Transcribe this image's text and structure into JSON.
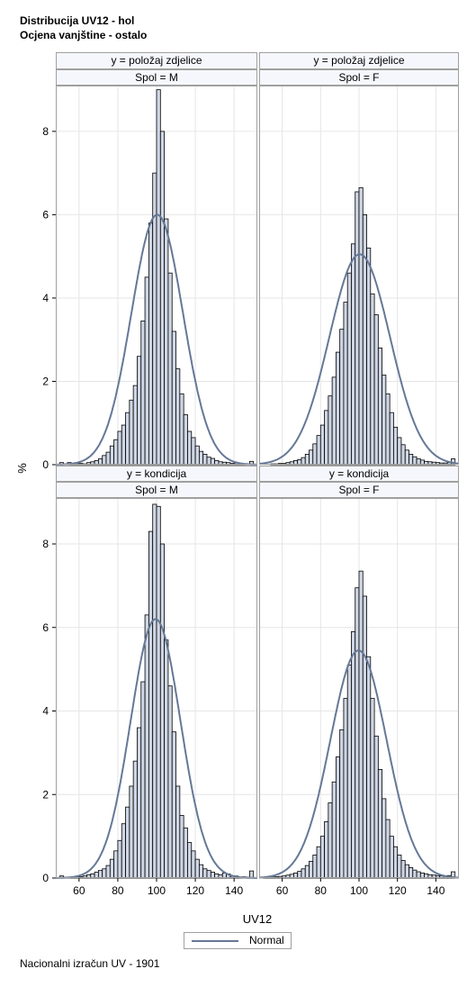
{
  "titles": {
    "line1": "Distribucija UV12 - hol",
    "line2": "Ocjena vanjštine - ostalo"
  },
  "footnote": "Nacionalni izračun UV - 1901",
  "legend": {
    "label": "Normal"
  },
  "colors": {
    "bar_fill": "#cfd6e4",
    "bar_edge": "#000000",
    "curve": "#657897",
    "header_bg": "#f6f7fc",
    "grid": "#e6e6e6",
    "frame": "#a0a0a0"
  },
  "chart_data": {
    "type": "bar",
    "panel_layout": "2x2",
    "xlabel": "UV12",
    "ylabel": "%",
    "xlim": [
      48,
      152
    ],
    "ylim": [
      0,
      9.1
    ],
    "x_ticks": [
      60,
      80,
      100,
      120,
      140
    ],
    "y_ticks": [
      0,
      2,
      4,
      6,
      8
    ],
    "grid": true,
    "legend_position": "bottom-center",
    "bin_width": 2,
    "bin_starts": [
      50,
      52,
      54,
      56,
      58,
      60,
      62,
      64,
      66,
      68,
      70,
      72,
      74,
      76,
      78,
      80,
      82,
      84,
      86,
      88,
      90,
      92,
      94,
      96,
      98,
      100,
      102,
      104,
      106,
      108,
      110,
      112,
      114,
      116,
      118,
      120,
      122,
      124,
      126,
      128,
      130,
      132,
      134,
      136,
      138,
      140,
      142,
      144,
      146,
      148
    ],
    "panels": [
      {
        "row_label": "y = položaj zdjelice",
        "col_label": "Spol = M",
        "normal_peak": 6.0,
        "values": [
          0.05,
          0.02,
          0.05,
          0.03,
          0.02,
          0.03,
          0.02,
          0.05,
          0.07,
          0.1,
          0.14,
          0.22,
          0.3,
          0.45,
          0.6,
          0.8,
          0.95,
          1.25,
          1.55,
          1.9,
          2.6,
          3.45,
          4.5,
          5.8,
          7.0,
          9.0,
          8.0,
          5.9,
          4.6,
          3.2,
          2.3,
          1.7,
          1.2,
          0.8,
          0.65,
          0.45,
          0.32,
          0.25,
          0.18,
          0.15,
          0.1,
          0.07,
          0.06,
          0.05,
          0.03,
          0.04,
          0.03,
          0.02,
          0.02,
          0.08
        ]
      },
      {
        "row_label": "y = položaj zdjelice",
        "col_label": "Spol = F",
        "normal_peak": 5.05,
        "values": [
          0.0,
          0.0,
          0.02,
          0.02,
          0.03,
          0.03,
          0.05,
          0.07,
          0.1,
          0.12,
          0.17,
          0.25,
          0.35,
          0.5,
          0.7,
          0.95,
          1.3,
          1.65,
          2.1,
          2.7,
          3.25,
          3.9,
          4.6,
          5.3,
          6.55,
          6.65,
          6.0,
          5.2,
          4.1,
          3.6,
          2.8,
          2.15,
          1.7,
          1.25,
          0.9,
          0.65,
          0.48,
          0.35,
          0.25,
          0.19,
          0.14,
          0.11,
          0.08,
          0.07,
          0.06,
          0.05,
          0.04,
          0.04,
          0.05,
          0.14
        ]
      },
      {
        "row_label": "y = kondicija",
        "col_label": "Spol = M",
        "normal_peak": 6.2,
        "values": [
          0.05,
          0.02,
          0.01,
          0.01,
          0.02,
          0.03,
          0.05,
          0.08,
          0.1,
          0.14,
          0.18,
          0.22,
          0.3,
          0.45,
          0.65,
          0.9,
          1.3,
          1.7,
          2.2,
          2.8,
          3.6,
          4.7,
          6.3,
          8.3,
          8.95,
          8.9,
          8.0,
          5.7,
          4.6,
          3.5,
          2.2,
          1.5,
          1.2,
          0.85,
          0.65,
          0.45,
          0.32,
          0.22,
          0.18,
          0.14,
          0.1,
          0.08,
          0.12,
          0.1,
          0.04,
          0.05,
          0.02,
          0.03,
          0.02,
          0.17
        ]
      },
      {
        "row_label": "y = kondicija",
        "col_label": "Spol = F",
        "normal_peak": 5.45,
        "values": [
          0.01,
          0.02,
          0.02,
          0.03,
          0.04,
          0.05,
          0.07,
          0.09,
          0.12,
          0.16,
          0.22,
          0.3,
          0.4,
          0.55,
          0.75,
          1.0,
          1.35,
          1.8,
          2.3,
          2.9,
          3.55,
          4.3,
          5.1,
          5.9,
          6.95,
          7.35,
          6.75,
          5.3,
          4.3,
          3.4,
          2.6,
          1.9,
          1.4,
          1.0,
          0.75,
          0.55,
          0.42,
          0.32,
          0.25,
          0.19,
          0.15,
          0.12,
          0.1,
          0.08,
          0.07,
          0.06,
          0.05,
          0.05,
          0.06,
          0.15
        ]
      }
    ]
  }
}
